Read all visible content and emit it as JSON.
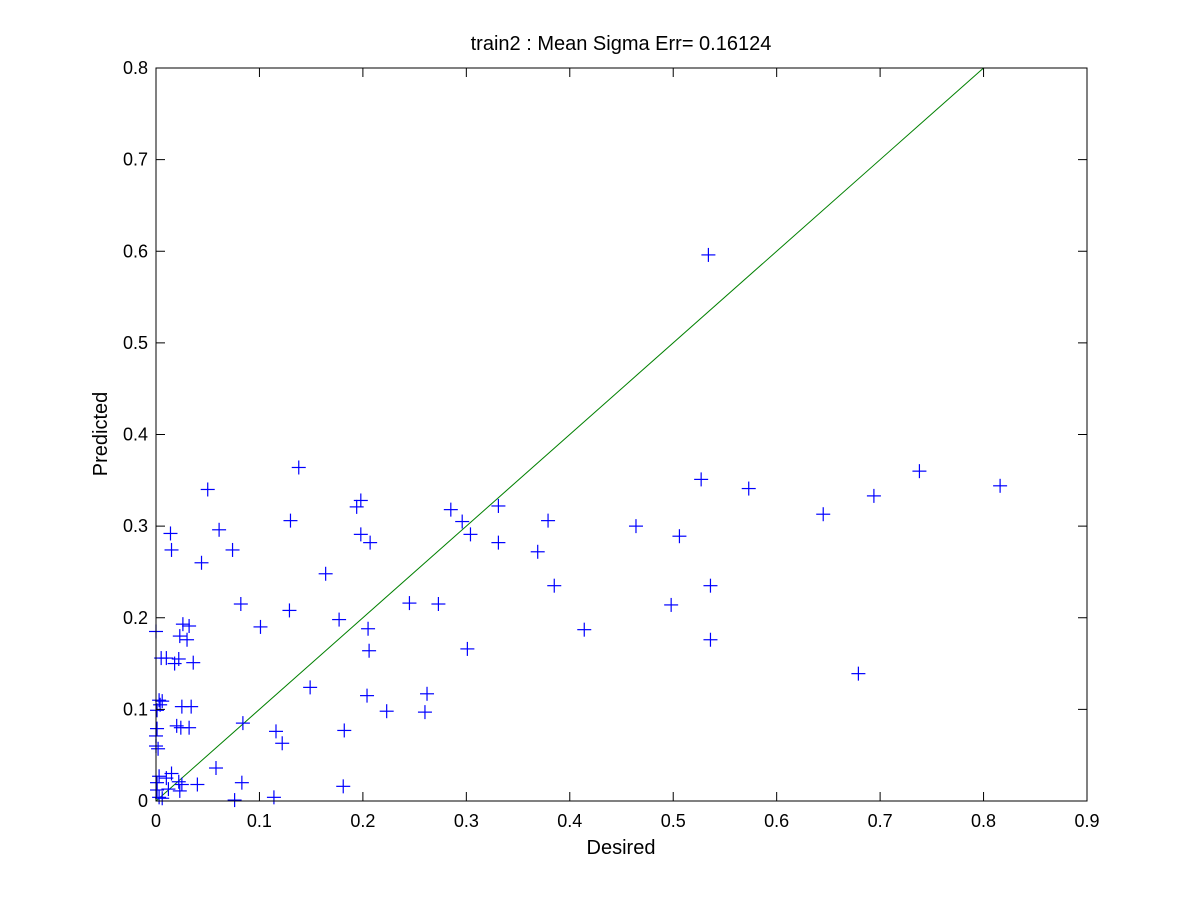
{
  "chart_data": {
    "type": "scatter",
    "title": "train2 :  Mean Sigma Err= 0.16124",
    "xlabel": "Desired",
    "ylabel": "Predicted",
    "xlim": [
      0,
      0.9
    ],
    "ylim": [
      0,
      0.8
    ],
    "xticks": [
      "0",
      "0.1",
      "0.2",
      "0.3",
      "0.4",
      "0.5",
      "0.6",
      "0.7",
      "0.8",
      "0.9"
    ],
    "yticks": [
      "0",
      "0.1",
      "0.2",
      "0.3",
      "0.4",
      "0.5",
      "0.6",
      "0.7",
      "0.8"
    ],
    "grid": false,
    "marker": "+",
    "marker_color": "#0000ff",
    "reference_line": {
      "x": [
        0,
        0.8
      ],
      "y": [
        0,
        0.8
      ],
      "color": "#008000"
    },
    "points": [
      [
        0.534,
        0.596
      ],
      [
        0.138,
        0.364
      ],
      [
        0.05,
        0.34
      ],
      [
        0.738,
        0.36
      ],
      [
        0.816,
        0.344
      ],
      [
        0.573,
        0.341
      ],
      [
        0.527,
        0.351
      ],
      [
        0.694,
        0.333
      ],
      [
        0.645,
        0.313
      ],
      [
        0.198,
        0.328
      ],
      [
        0.194,
        0.321
      ],
      [
        0.285,
        0.318
      ],
      [
        0.331,
        0.322
      ],
      [
        0.464,
        0.3
      ],
      [
        0.13,
        0.306
      ],
      [
        0.296,
        0.305
      ],
      [
        0.379,
        0.306
      ],
      [
        0.061,
        0.296
      ],
      [
        0.014,
        0.292
      ],
      [
        0.198,
        0.291
      ],
      [
        0.207,
        0.282
      ],
      [
        0.304,
        0.291
      ],
      [
        0.331,
        0.282
      ],
      [
        0.506,
        0.289
      ],
      [
        0.074,
        0.274
      ],
      [
        0.015,
        0.274
      ],
      [
        0.369,
        0.272
      ],
      [
        0.044,
        0.26
      ],
      [
        0.164,
        0.248
      ],
      [
        0.385,
        0.235
      ],
      [
        0.536,
        0.235
      ],
      [
        0.082,
        0.215
      ],
      [
        0.245,
        0.216
      ],
      [
        0.273,
        0.215
      ],
      [
        0.498,
        0.214
      ],
      [
        0.129,
        0.208
      ],
      [
        0.177,
        0.198
      ],
      [
        0.026,
        0.193
      ],
      [
        0.032,
        0.191
      ],
      [
        0.101,
        0.19
      ],
      [
        0.205,
        0.188
      ],
      [
        0.414,
        0.187
      ],
      [
        0.0,
        0.185
      ],
      [
        0.023,
        0.18
      ],
      [
        0.03,
        0.176
      ],
      [
        0.536,
        0.176
      ],
      [
        0.301,
        0.166
      ],
      [
        0.206,
        0.164
      ],
      [
        0.005,
        0.156
      ],
      [
        0.01,
        0.156
      ],
      [
        0.022,
        0.155
      ],
      [
        0.018,
        0.15
      ],
      [
        0.036,
        0.151
      ],
      [
        0.679,
        0.139
      ],
      [
        0.149,
        0.124
      ],
      [
        0.262,
        0.117
      ],
      [
        0.204,
        0.115
      ],
      [
        0.003,
        0.11
      ],
      [
        0.006,
        0.109
      ],
      [
        0.025,
        0.103
      ],
      [
        0.034,
        0.103
      ],
      [
        0.223,
        0.098
      ],
      [
        0.26,
        0.097
      ],
      [
        0.004,
        0.105
      ],
      [
        0.001,
        0.099
      ],
      [
        0.084,
        0.085
      ],
      [
        0.02,
        0.082
      ],
      [
        0.024,
        0.08
      ],
      [
        0.032,
        0.08
      ],
      [
        0.001,
        0.079
      ],
      [
        0.116,
        0.076
      ],
      [
        0.182,
        0.077
      ],
      [
        0.0,
        0.071
      ],
      [
        0.122,
        0.063
      ],
      [
        0.0,
        0.06
      ],
      [
        0.002,
        0.057
      ],
      [
        0.058,
        0.036
      ],
      [
        0.003,
        0.027
      ],
      [
        0.01,
        0.025
      ],
      [
        0.015,
        0.03
      ],
      [
        0.022,
        0.021
      ],
      [
        0.025,
        0.018
      ],
      [
        0.083,
        0.02
      ],
      [
        0.04,
        0.018
      ],
      [
        0.012,
        0.013
      ],
      [
        0.001,
        0.012
      ],
      [
        0.003,
        0.004
      ],
      [
        0.006,
        0.003
      ],
      [
        0.023,
        0.011
      ],
      [
        0.181,
        0.016
      ],
      [
        0.076,
        0.001
      ],
      [
        0.114,
        0.004
      ],
      [
        0.001,
        0.02
      ]
    ]
  }
}
